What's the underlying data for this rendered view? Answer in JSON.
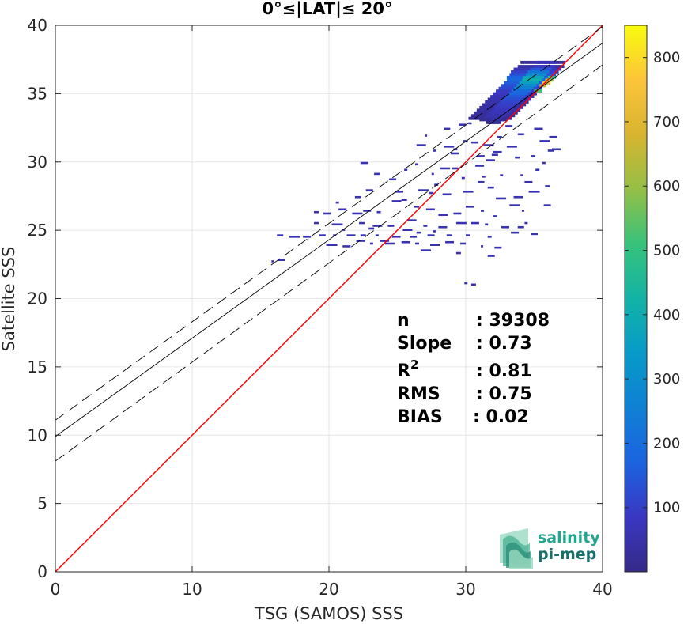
{
  "chart_data": {
    "type": "heatmap",
    "title": "0°≤|LAT|≤ 20°",
    "xlabel": "TSG (SAMOS) SSS",
    "ylabel": "Satellite SSS",
    "xlim": [
      0,
      40
    ],
    "ylim": [
      0,
      40
    ],
    "xticks": [
      "0",
      "10",
      "20",
      "30",
      "40"
    ],
    "yticks": [
      "0",
      "5",
      "10",
      "15",
      "20",
      "25",
      "30",
      "35",
      "40"
    ],
    "grid": true,
    "colorbar": {
      "colormap": "parula",
      "range": [
        0,
        850
      ],
      "ticks": [
        "100",
        "200",
        "300",
        "400",
        "500",
        "600",
        "700",
        "800"
      ]
    },
    "lines": [
      {
        "name": "one-to-one",
        "color": "#ff0000",
        "style": "solid",
        "points": [
          [
            0,
            0
          ],
          [
            40,
            40
          ]
        ]
      },
      {
        "name": "regression fit",
        "color": "#000000",
        "style": "solid",
        "points": [
          [
            0,
            9.9
          ],
          [
            40,
            38.7
          ]
        ]
      },
      {
        "name": "upper bound",
        "color": "#000000",
        "style": "dashed",
        "points": [
          [
            0,
            11.1
          ],
          [
            40,
            39.9
          ]
        ]
      },
      {
        "name": "lower bound",
        "color": "#000000",
        "style": "dashed",
        "points": [
          [
            0,
            8.1
          ],
          [
            40,
            37.1
          ]
        ]
      }
    ],
    "stats": [
      {
        "label": "n",
        "sup": "",
        "value": ": 39308"
      },
      {
        "label": "Slope",
        "sup": "",
        "value": ": 0.73"
      },
      {
        "label": "R",
        "sup": "2",
        "value": ": 0.81"
      },
      {
        "label": "RMS",
        "sup": "",
        "value": ": 0.75"
      },
      {
        "label": "BIAS",
        "sup": "",
        "value": ": 0.02"
      }
    ],
    "density_segments": [
      [
        34.0,
        37.3,
        37.4,
        60
      ],
      [
        33.8,
        37.2,
        37.1,
        80
      ],
      [
        33.5,
        37.0,
        36.9,
        140
      ],
      [
        33.3,
        36.8,
        36.7,
        220
      ],
      [
        33.2,
        36.6,
        36.5,
        300
      ],
      [
        33.0,
        36.4,
        36.3,
        380
      ],
      [
        33.0,
        36.2,
        36.1,
        420
      ],
      [
        32.8,
        36.0,
        35.9,
        360
      ],
      [
        32.6,
        35.8,
        35.7,
        300
      ],
      [
        32.4,
        35.6,
        35.5,
        260
      ],
      [
        32.2,
        35.4,
        35.3,
        200
      ],
      [
        32.0,
        35.2,
        35.1,
        180
      ],
      [
        31.8,
        35.0,
        34.9,
        150
      ],
      [
        31.6,
        34.8,
        34.7,
        130
      ],
      [
        31.4,
        34.6,
        34.5,
        110
      ],
      [
        31.2,
        34.4,
        34.3,
        100
      ],
      [
        31.0,
        34.2,
        34.1,
        90
      ],
      [
        30.8,
        34.0,
        33.9,
        80
      ],
      [
        30.6,
        33.8,
        33.7,
        70
      ],
      [
        30.4,
        33.6,
        33.5,
        60
      ],
      [
        30.2,
        33.4,
        33.3,
        50
      ],
      [
        31.0,
        33.0,
        33.2,
        40
      ],
      [
        31.5,
        32.6,
        33.0,
        30
      ]
    ],
    "hot_core": [
      [
        35.6,
        36.2,
        35.9,
        720
      ],
      [
        35.4,
        35.9,
        35.7,
        650
      ],
      [
        35.8,
        36.4,
        36.1,
        600
      ],
      [
        35.0,
        35.6,
        35.3,
        520
      ],
      [
        36.0,
        36.6,
        36.3,
        480
      ]
    ],
    "scatter_points": [
      [
        28.4,
        31.2
      ],
      [
        29.1,
        31.0
      ],
      [
        28.9,
        30.7
      ],
      [
        27.6,
        30.9
      ],
      [
        30.4,
        31.5
      ],
      [
        29.8,
        31.6
      ],
      [
        31.3,
        31.3
      ],
      [
        32.0,
        30.8
      ],
      [
        31.5,
        30.2
      ],
      [
        30.7,
        29.8
      ],
      [
        29.0,
        29.6
      ],
      [
        28.1,
        29.6
      ],
      [
        27.5,
        29.2
      ],
      [
        26.3,
        29.9
      ],
      [
        25.5,
        29.5
      ],
      [
        24.4,
        28.8
      ],
      [
        26.5,
        28.0
      ],
      [
        27.3,
        27.8
      ],
      [
        28.3,
        27.7
      ],
      [
        29.8,
        27.9
      ],
      [
        30.9,
        28.6
      ],
      [
        31.6,
        28.2
      ],
      [
        32.2,
        27.4
      ],
      [
        33.2,
        26.9
      ],
      [
        34.1,
        26.5
      ],
      [
        33.5,
        27.5
      ],
      [
        34.6,
        27.9
      ],
      [
        35.1,
        29.5
      ],
      [
        35.6,
        30.0
      ],
      [
        36.0,
        30.9
      ],
      [
        35.4,
        31.6
      ],
      [
        33.0,
        31.2
      ],
      [
        32.3,
        31.9
      ],
      [
        34.0,
        29.1
      ],
      [
        30.0,
        26.8
      ],
      [
        29.1,
        26.3
      ],
      [
        28.0,
        26.2
      ],
      [
        27.1,
        26.6
      ],
      [
        26.2,
        26.8
      ],
      [
        25.3,
        27.3
      ],
      [
        24.8,
        27.9
      ],
      [
        23.5,
        26.4
      ],
      [
        22.5,
        26.5
      ],
      [
        21.7,
        26.3
      ],
      [
        22.2,
        25.6
      ],
      [
        23.2,
        25.4
      ],
      [
        24.3,
        25.4
      ],
      [
        25.7,
        25.8
      ],
      [
        26.9,
        25.4
      ],
      [
        28.0,
        25.3
      ],
      [
        29.3,
        25.6
      ],
      [
        30.4,
        25.6
      ],
      [
        31.4,
        25.5
      ],
      [
        32.6,
        25.3
      ],
      [
        33.8,
        25.3
      ],
      [
        34.8,
        24.8
      ],
      [
        33.3,
        24.9
      ],
      [
        31.6,
        24.6
      ],
      [
        30.0,
        24.7
      ],
      [
        28.6,
        24.7
      ],
      [
        27.2,
        24.7
      ],
      [
        25.9,
        24.6
      ],
      [
        24.6,
        24.6
      ],
      [
        23.4,
        24.7
      ],
      [
        22.3,
        24.7
      ],
      [
        21.3,
        24.7
      ],
      [
        20.3,
        24.7
      ],
      [
        19.3,
        24.7
      ],
      [
        18.1,
        24.6
      ],
      [
        17.1,
        24.6
      ],
      [
        16.2,
        24.7
      ],
      [
        18.9,
        25.6
      ],
      [
        20.2,
        25.5
      ],
      [
        21.0,
        25.1
      ],
      [
        22.0,
        24.3
      ],
      [
        23.0,
        24.1
      ],
      [
        24.1,
        24.1
      ],
      [
        25.3,
        24.2
      ],
      [
        26.3,
        24.1
      ],
      [
        27.4,
        24.0
      ],
      [
        28.5,
        24.2
      ],
      [
        29.6,
        24.1
      ],
      [
        31.1,
        23.9
      ],
      [
        32.1,
        23.8
      ],
      [
        31.6,
        23.2
      ],
      [
        29.3,
        23.4
      ],
      [
        26.7,
        23.6
      ],
      [
        21.0,
        23.9
      ],
      [
        19.8,
        24.0
      ],
      [
        16.3,
        22.9
      ],
      [
        15.8,
        22.8
      ],
      [
        29.9,
        21.2
      ],
      [
        30.4,
        21.1
      ],
      [
        18.9,
        26.4
      ],
      [
        19.6,
        26.3
      ],
      [
        20.7,
        26.6
      ],
      [
        36.1,
        31.9
      ],
      [
        35.0,
        32.5
      ],
      [
        33.8,
        32.1
      ],
      [
        32.9,
        32.7
      ],
      [
        30.2,
        32.9
      ],
      [
        29.5,
        32.8
      ],
      [
        28.4,
        32.5
      ],
      [
        27.0,
        32.0
      ],
      [
        26.4,
        31.3
      ],
      [
        22.3,
        30.0
      ],
      [
        23.3,
        29.2
      ],
      [
        22.7,
        28.0
      ],
      [
        24.6,
        27.2
      ],
      [
        27.7,
        28.4
      ],
      [
        29.7,
        28.9
      ],
      [
        31.2,
        29.0
      ],
      [
        32.5,
        29.1
      ],
      [
        34.8,
        30.5
      ],
      [
        33.6,
        30.4
      ],
      [
        31.9,
        30.6
      ],
      [
        30.8,
        30.5
      ],
      [
        36.3,
        31.0
      ],
      [
        35.8,
        28.3
      ],
      [
        34.3,
        28.6
      ],
      [
        32.0,
        26.1
      ],
      [
        31.1,
        26.5
      ],
      [
        27.6,
        25.0
      ],
      [
        26.4,
        24.9
      ],
      [
        25.4,
        25.1
      ],
      [
        23.7,
        24.3
      ],
      [
        22.9,
        25.2
      ],
      [
        35.7,
        26.9
      ],
      [
        34.3,
        25.6
      ],
      [
        21.9,
        27.5
      ],
      [
        20.5,
        27.1
      ]
    ]
  },
  "logo": {
    "line1": "salinity",
    "line2": "pi-mep"
  }
}
